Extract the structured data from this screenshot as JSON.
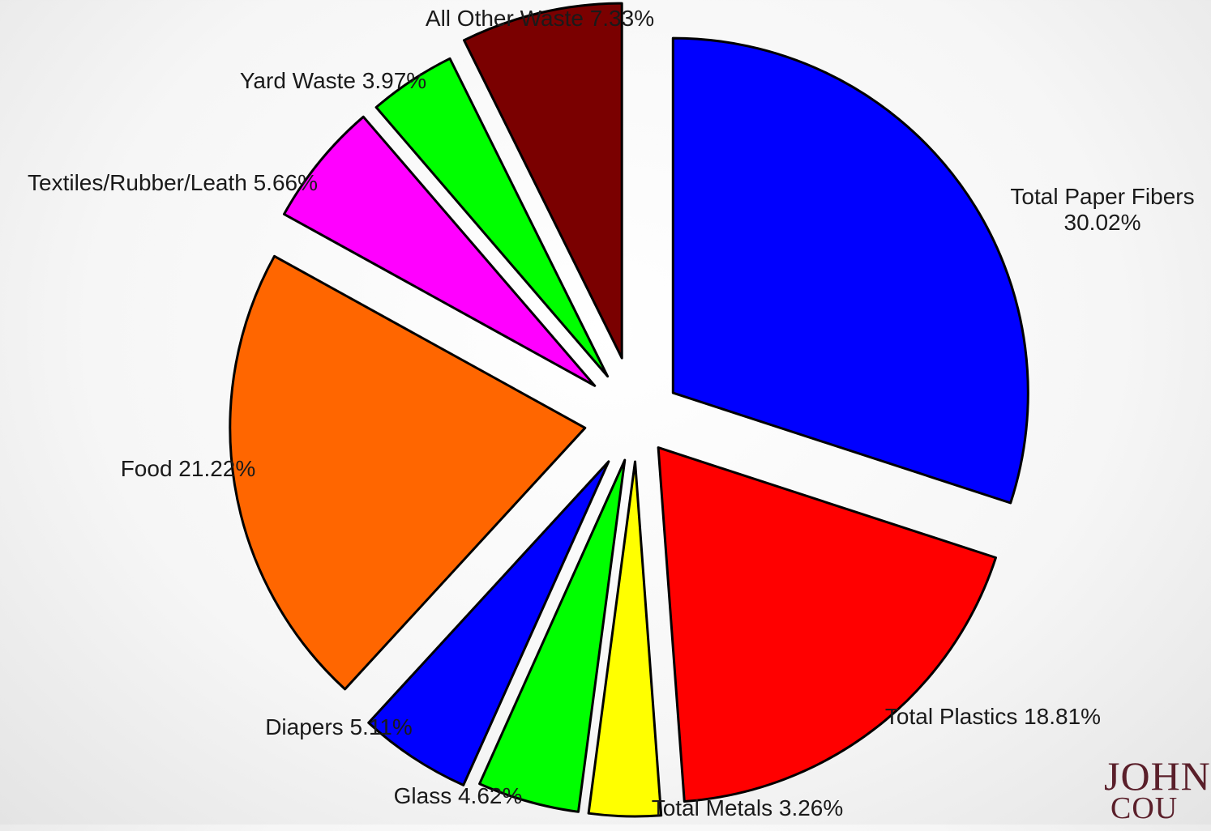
{
  "chart_data": {
    "type": "pie",
    "title": "",
    "start_angle_deg": 0,
    "direction": "clockwise",
    "exploded": true,
    "slices": [
      {
        "label": "Total Paper Fibers",
        "value_label": "30.02%",
        "value": 30.02,
        "color": "#0000ff"
      },
      {
        "label": "Total Plastics",
        "value_label": "18.81%",
        "value": 18.81,
        "color": "#ff0000"
      },
      {
        "label": "Total Metals",
        "value_label": "3.26%",
        "value": 3.26,
        "color": "#ffff00"
      },
      {
        "label": "Glass",
        "value_label": "4.62%",
        "value": 4.62,
        "color": "#00ff00"
      },
      {
        "label": "Diapers",
        "value_label": "5.11%",
        "value": 5.11,
        "color": "#0000ff"
      },
      {
        "label": "Food",
        "value_label": "21.22%",
        "value": 21.22,
        "color": "#ff6600"
      },
      {
        "label": "Textiles/Rubber/Leath",
        "value_label": "5.66%",
        "value": 5.66,
        "color": "#ff00ff"
      },
      {
        "label": "Yard Waste",
        "value_label": "3.97%",
        "value": 3.97,
        "color": "#00ff00"
      },
      {
        "label": "All Other Waste",
        "value_label": "7.33%",
        "value": 7.33,
        "color": "#7a0000"
      }
    ]
  },
  "logo": {
    "line1": "JOHN",
    "line2": "COU"
  }
}
